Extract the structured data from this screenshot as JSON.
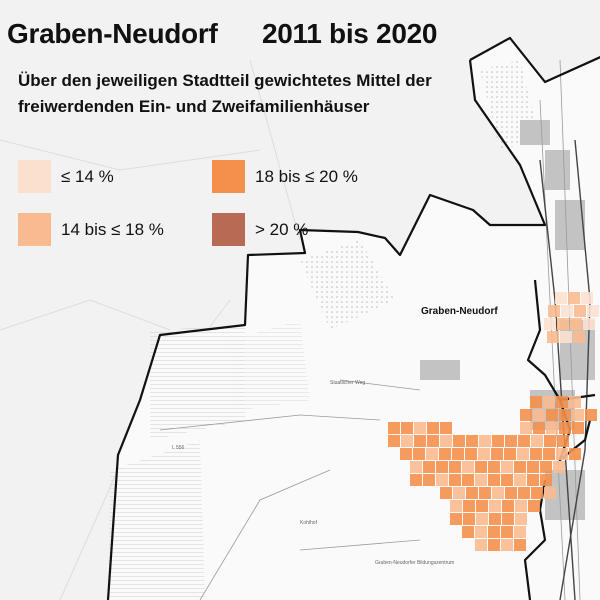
{
  "title": {
    "place": "Graben-Neudorf",
    "years": "2011 bis 2020"
  },
  "subtitle": "Über den jeweiligen Stadtteil gewichtetes Mittel der freiwerdenden Ein- und Zweifamilienhäuser",
  "legend": [
    {
      "label": "≤ 14 %",
      "color": "#fbe0d0"
    },
    {
      "label": "18 bis ≤ 20 %",
      "color": "#f5904c"
    },
    {
      "label": "14 bis ≤ 18 %",
      "color": "#f9ba8f"
    },
    {
      "label": "> 20 %",
      "color": "#b86a54"
    }
  ],
  "map": {
    "place_label": "Graben-Neudorf",
    "street_labels": [
      "Staatlicher Weg",
      "L 556",
      "Kohlhof",
      "Graben-Neudorfer Bildungszentrum"
    ]
  },
  "colors": {
    "background": "#f2f2f2",
    "municipality_area": "#fafafa",
    "boundary": "#111111",
    "forest_hatch": "#cfcfcf",
    "road": "#ffffff",
    "settlement": "#bdbdbd"
  }
}
